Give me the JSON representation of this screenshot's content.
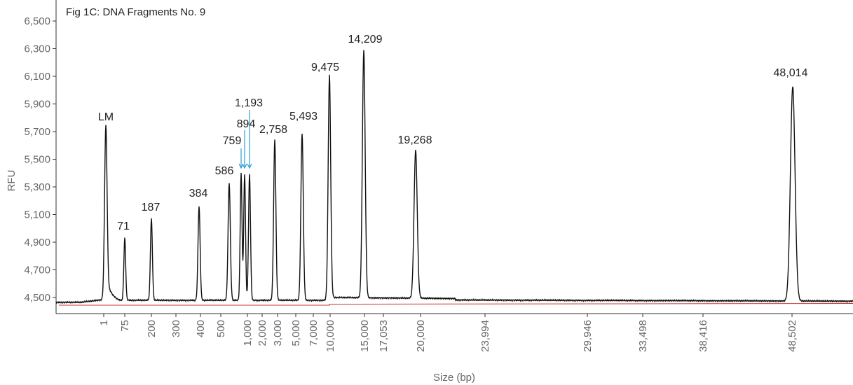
{
  "chart_data": {
    "type": "line",
    "title": "Fig 1C: DNA Fragments No. 9",
    "xlabel": "Size (bp)",
    "ylabel": "RFU",
    "ylim": [
      4450,
      6550
    ],
    "y_ticks": [
      "4,500",
      "4,700",
      "4,900",
      "5,100",
      "5,300",
      "5,500",
      "5,700",
      "5,900",
      "6,100",
      "6,300",
      "6,500"
    ],
    "y_tick_values": [
      4500,
      4700,
      4900,
      5100,
      5300,
      5500,
      5700,
      5900,
      6100,
      6300,
      6500
    ],
    "x_ticks": [
      "1",
      "75",
      "200",
      "300",
      "400",
      "500",
      "1,000",
      "2,000",
      "3,000",
      "5,000",
      "7,000",
      "10,000",
      "15,000",
      "17,053",
      "20,000",
      "23,994",
      "29,946",
      "33,498",
      "38,416",
      "48,502"
    ],
    "baseline_rfu": 4490,
    "peaks": [
      {
        "label": "LM",
        "rfu": 5740
      },
      {
        "label": "71",
        "rfu": 4940
      },
      {
        "label": "187",
        "rfu": 5080
      },
      {
        "label": "384",
        "rfu": 5170
      },
      {
        "label": "586",
        "rfu": 5340
      },
      {
        "label": "759",
        "rfu": 5410
      },
      {
        "label": "894",
        "rfu": 5400
      },
      {
        "label": "1,193",
        "rfu": 5400
      },
      {
        "label": "2,758",
        "rfu": 5650
      },
      {
        "label": "5,493",
        "rfu": 5700
      },
      {
        "label": "9,475",
        "rfu": 6100
      },
      {
        "label": "14,209",
        "rfu": 6280
      },
      {
        "label": "19,268",
        "rfu": 5560
      },
      {
        "label": "48,014",
        "rfu": 6040
      }
    ],
    "arrowed_peaks": [
      "759",
      "894",
      "1,193"
    ],
    "colors": {
      "trace": "#111111",
      "baseline": "#cc3333",
      "arrows": "#2a9fd6",
      "axis": "#333333"
    },
    "grid": false,
    "legend": "none"
  }
}
